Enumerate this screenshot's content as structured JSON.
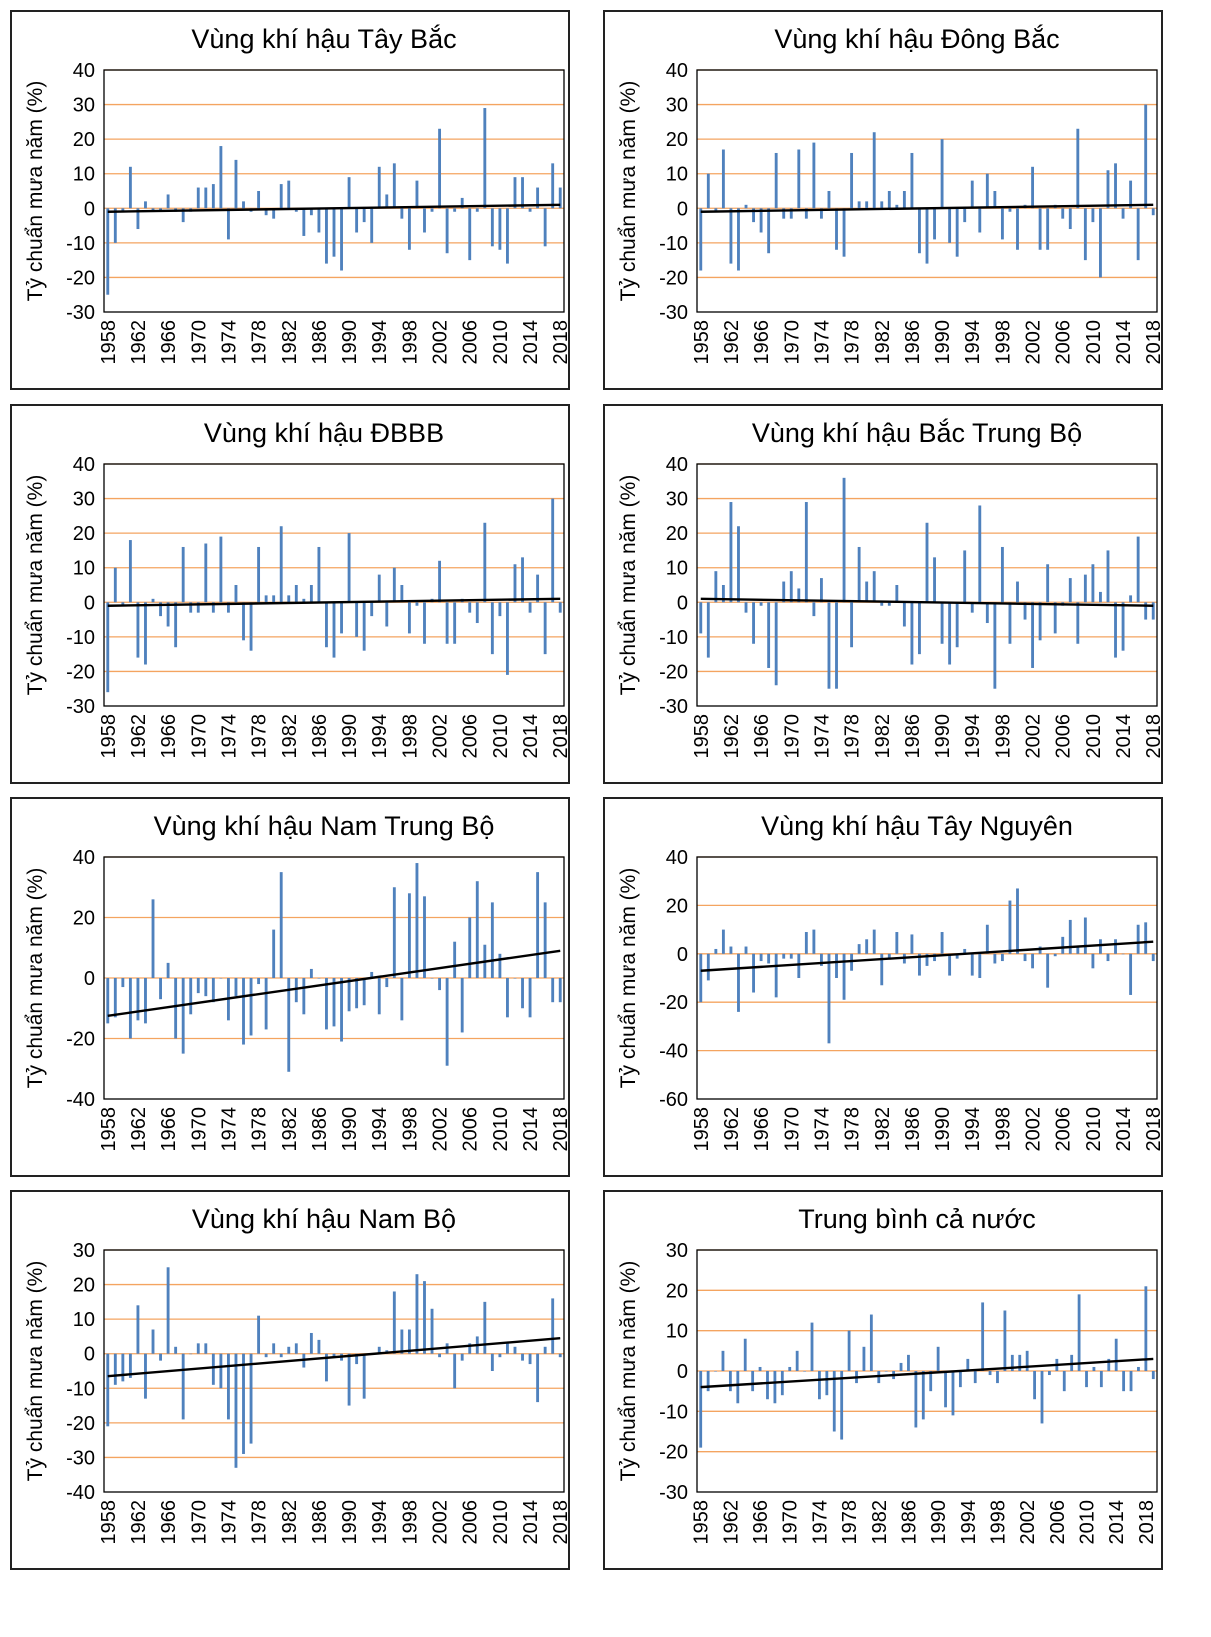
{
  "chart_data": [
    {
      "type": "bar",
      "title": "Vùng khí hậu Tây Bắc",
      "ylabel": "Tỷ chuẩn mưa năm (%)",
      "ylim": [
        -30,
        40
      ],
      "yticks": [
        -30,
        -20,
        -10,
        0,
        10,
        20,
        30,
        40
      ],
      "x_start": 1958,
      "xtick_labels": [
        "1958",
        "1962",
        "1966",
        "1970",
        "1974",
        "1978",
        "1982",
        "1986",
        "1990",
        "1994",
        "1998",
        "2002",
        "2006",
        "2010",
        "2014",
        "2018"
      ],
      "trend": [
        -1,
        1
      ],
      "values": [
        -25,
        -10,
        -1,
        12,
        -6,
        2,
        -1,
        -1,
        4,
        -1,
        -4,
        -1,
        6,
        6,
        7,
        18,
        -9,
        14,
        2,
        -1,
        5,
        -2,
        -3,
        7,
        8,
        -1,
        -8,
        -2,
        -7,
        -16,
        -14,
        -18,
        9,
        -7,
        -4,
        -10,
        12,
        4,
        13,
        -3,
        -12,
        8,
        -7,
        -1,
        23,
        -13,
        -1,
        3,
        -15,
        -1,
        29,
        -11,
        -12,
        -16,
        9,
        9,
        -1,
        6,
        -11,
        13,
        6
      ]
    },
    {
      "type": "bar",
      "title": "Vùng khí hậu Đông Bắc",
      "ylabel": "Tỷ chuẩn mưa năm (%)",
      "ylim": [
        -30,
        40
      ],
      "yticks": [
        -30,
        -20,
        -10,
        0,
        10,
        20,
        30,
        40
      ],
      "x_start": 1958,
      "xtick_labels": [
        "1958",
        "1962",
        "1966",
        "1970",
        "1974",
        "1978",
        "1982",
        "1986",
        "1990",
        "1994",
        "1998",
        "2002",
        "2006",
        "2010",
        "2014",
        "2018"
      ],
      "trend": [
        -1,
        1
      ],
      "values": [
        -18,
        10,
        -1,
        17,
        -16,
        -18,
        1,
        -4,
        -7,
        -13,
        16,
        -3,
        -3,
        17,
        -3,
        19,
        -3,
        5,
        -12,
        -14,
        16,
        2,
        2,
        22,
        2,
        5,
        1,
        5,
        16,
        -13,
        -16,
        -9,
        20,
        -10,
        -14,
        -4,
        8,
        -7,
        10,
        5,
        -9,
        -1,
        -12,
        1,
        12,
        -12,
        -12,
        1,
        -3,
        -6,
        23,
        -15,
        -4,
        -20,
        11,
        13,
        -3,
        8,
        -15,
        30,
        -2
      ]
    },
    {
      "type": "bar",
      "title": "Vùng khí hậu ĐBBB",
      "ylabel": "Tỷ chuẩn mưa năm (%)",
      "ylim": [
        -30,
        40
      ],
      "yticks": [
        -30,
        -20,
        -10,
        0,
        10,
        20,
        30,
        40
      ],
      "x_start": 1958,
      "xtick_labels": [
        "1958",
        "1962",
        "1966",
        "1970",
        "1974",
        "1978",
        "1982",
        "1986",
        "1990",
        "1994",
        "1998",
        "2002",
        "2006",
        "2010",
        "2014",
        "2018"
      ],
      "trend": [
        -1,
        1
      ],
      "values": [
        -26,
        10,
        -1,
        18,
        -16,
        -18,
        1,
        -4,
        -7,
        -13,
        16,
        -3,
        -3,
        17,
        -3,
        19,
        -3,
        5,
        -11,
        -14,
        16,
        2,
        2,
        22,
        2,
        5,
        1,
        5,
        16,
        -13,
        -16,
        -9,
        20,
        -10,
        -14,
        -4,
        8,
        -7,
        10,
        5,
        -9,
        -1,
        -12,
        1,
        12,
        -12,
        -12,
        1,
        -3,
        -6,
        23,
        -15,
        -4,
        -21,
        11,
        13,
        -3,
        8,
        -15,
        30,
        -3
      ]
    },
    {
      "type": "bar",
      "title": "Vùng khí hậu Bắc Trung Bộ",
      "ylabel": "Tỷ chuẩn mưa năm (%)",
      "ylim": [
        -30,
        40
      ],
      "yticks": [
        -30,
        -20,
        -10,
        0,
        10,
        20,
        30,
        40
      ],
      "x_start": 1958,
      "xtick_labels": [
        "1958",
        "1962",
        "1966",
        "1970",
        "1974",
        "1978",
        "1982",
        "1986",
        "1990",
        "1994",
        "1998",
        "2002",
        "2006",
        "2010",
        "2014",
        "2018"
      ],
      "trend": [
        1,
        -1
      ],
      "values": [
        -9,
        -16,
        9,
        5,
        29,
        22,
        -3,
        -12,
        -1,
        -19,
        -24,
        6,
        9,
        4,
        29,
        -4,
        7,
        -25,
        -25,
        36,
        -13,
        16,
        6,
        9,
        -1,
        -1,
        5,
        -7,
        -18,
        -15,
        23,
        13,
        -12,
        -18,
        -13,
        15,
        -3,
        28,
        -6,
        -25,
        16,
        -12,
        6,
        -5,
        -19,
        -11,
        11,
        -9,
        -1,
        7,
        -12,
        8,
        11,
        3,
        15,
        -16,
        -14,
        2,
        19,
        -5,
        -5
      ]
    },
    {
      "type": "bar",
      "title": "Vùng khí hậu Nam Trung Bộ",
      "ylabel": "Tỷ chuẩn mưa năm (%)",
      "ylim": [
        -40,
        40
      ],
      "yticks": [
        -40,
        -20,
        0,
        20,
        40
      ],
      "x_start": 1958,
      "xtick_labels": [
        "1958",
        "1962",
        "1966",
        "1970",
        "1974",
        "1978",
        "1982",
        "1986",
        "1990",
        "1994",
        "1998",
        "2002",
        "2006",
        "2010",
        "2014",
        "2018"
      ],
      "trend": [
        -12.5,
        9
      ],
      "values": [
        -15,
        -13,
        -3,
        -20,
        -14,
        -15,
        26,
        -7,
        5,
        -20,
        -25,
        -12,
        -5,
        -6,
        -8,
        0,
        -14,
        -6,
        -22,
        -19,
        -2,
        -17,
        16,
        35,
        -31,
        -8,
        -12,
        3,
        0,
        -17,
        -16,
        -21,
        -11,
        -10,
        -9,
        2,
        -12,
        -3,
        30,
        -14,
        28,
        38,
        27,
        0,
        -4,
        -29,
        12,
        -18,
        20,
        32,
        11,
        25,
        8,
        -13,
        0,
        -10,
        -13,
        35,
        25,
        -8,
        -8
      ]
    },
    {
      "type": "bar",
      "title": "Vùng khí hậu Tây Nguyên",
      "ylabel": "Tỷ chuẩn mưa năm (%)",
      "ylim": [
        -60,
        40
      ],
      "yticks": [
        -60,
        -40,
        -20,
        0,
        20,
        40
      ],
      "x_start": 1958,
      "xtick_labels": [
        "1958",
        "1962",
        "1966",
        "1970",
        "1974",
        "1978",
        "1982",
        "1986",
        "1990",
        "1994",
        "1998",
        "2002",
        "2006",
        "2010",
        "2014",
        "2018"
      ],
      "trend": [
        -7,
        5
      ],
      "values": [
        -20,
        -11,
        2,
        10,
        3,
        -24,
        3,
        -16,
        -3,
        -4,
        -18,
        -2,
        -2,
        -10,
        9,
        10,
        -5,
        -37,
        -10,
        -19,
        -7,
        4,
        6,
        10,
        -13,
        -2,
        9,
        -4,
        8,
        -9,
        -5,
        -3,
        9,
        -9,
        -2,
        2,
        -9,
        -10,
        12,
        -4,
        -3,
        22,
        27,
        -3,
        -6,
        3,
        -14,
        -1,
        7,
        14,
        3,
        15,
        -6,
        6,
        -3,
        6,
        0,
        -17,
        12,
        13,
        -3
      ]
    },
    {
      "type": "bar",
      "title": "Vùng khí hậu Nam Bộ",
      "ylabel": "Tỷ chuẩn mưa năm (%)",
      "ylim": [
        -40,
        30
      ],
      "yticks": [
        -40,
        -30,
        -20,
        -10,
        0,
        10,
        20,
        30
      ],
      "x_start": 1958,
      "xtick_labels": [
        "1958",
        "1962",
        "1966",
        "1970",
        "1974",
        "1978",
        "1982",
        "1986",
        "1990",
        "1994",
        "1998",
        "2002",
        "2006",
        "2010",
        "2014",
        "2018"
      ],
      "trend": [
        -6.5,
        4.5
      ],
      "values": [
        -21,
        -9,
        -8,
        -7,
        14,
        -13,
        7,
        -2,
        25,
        2,
        -19,
        0,
        3,
        3,
        -9,
        -10,
        -19,
        -33,
        -29,
        -26,
        11,
        -1,
        3,
        -1,
        2,
        3,
        -4,
        6,
        4,
        -8,
        -1,
        -2,
        -15,
        -3,
        -13,
        0,
        2,
        1,
        18,
        7,
        7,
        23,
        21,
        13,
        -1,
        3,
        -10,
        -2,
        3,
        5,
        15,
        -5,
        -1,
        3,
        2,
        -2,
        -3,
        -14,
        2,
        16,
        -1
      ]
    },
    {
      "type": "bar",
      "title": "Trung bình cả nước",
      "ylabel": "Tỷ chuẩn mưa năm (%)",
      "ylim": [
        -30,
        30
      ],
      "yticks": [
        -30,
        -20,
        -10,
        0,
        10,
        20,
        30
      ],
      "x_start": 1958,
      "xtick_labels": [
        "1958",
        "1962",
        "1966",
        "1970",
        "1974",
        "1978",
        "1982",
        "1986",
        "1990",
        "1994",
        "1998",
        "2002",
        "2006",
        "2010",
        "2014",
        "2018"
      ],
      "trend": [
        -4,
        3
      ],
      "values": [
        -19,
        -5,
        0,
        5,
        -5,
        -8,
        8,
        -5,
        1,
        -7,
        -8,
        -6,
        1,
        5,
        0,
        12,
        -7,
        -6,
        -15,
        -17,
        10,
        -3,
        6,
        14,
        -3,
        0,
        -2,
        2,
        4,
        -14,
        -12,
        -5,
        6,
        -9,
        -11,
        -4,
        3,
        -3,
        17,
        -1,
        -3,
        15,
        4,
        4,
        5,
        -7,
        -13,
        -1,
        3,
        -5,
        4,
        19,
        -4,
        1,
        -4,
        3,
        8,
        -5,
        -5,
        1,
        21,
        -2
      ]
    }
  ]
}
